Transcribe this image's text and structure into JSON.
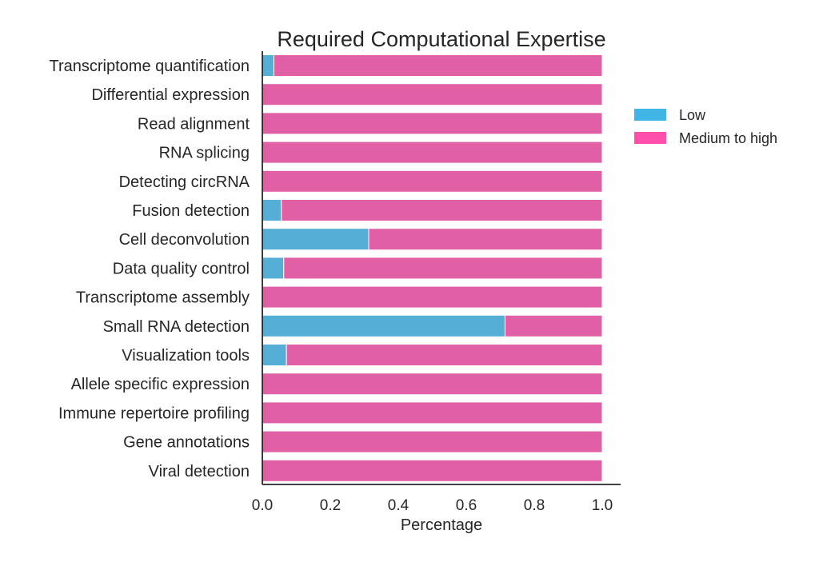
{
  "chart_data": {
    "type": "bar",
    "orientation": "horizontal",
    "stacked": true,
    "title": "Required Computational Expertise",
    "xlabel": "Percentage",
    "ylabel": "",
    "xlim": [
      0,
      1.0
    ],
    "xticks": [
      "0.0",
      "0.2",
      "0.4",
      "0.6",
      "0.8",
      "1.0"
    ],
    "grid": false,
    "legend_position": "right",
    "categories": [
      "Transcriptome quantification",
      "Differential expression",
      "Read alignment",
      "RNA splicing",
      "Detecting circRNA",
      "Fusion detection",
      "Cell deconvolution",
      "Data quality control",
      "Transcriptome assembly",
      "Small RNA detection",
      "Visualization tools",
      "Allele specific expression",
      "Immune repertoire profiling",
      "Gene annotations",
      "Viral detection"
    ],
    "series": [
      {
        "name": "Low",
        "color": "#55aed6",
        "legend_color": "#41b6e6",
        "values": [
          0.034,
          0,
          0,
          0,
          0,
          0.056,
          0.313,
          0.063,
          0,
          0.714,
          0.071,
          0,
          0,
          0,
          0
        ]
      },
      {
        "name": "Medium to high",
        "color": "#e05fa5",
        "legend_color": "#ff4fac",
        "values": [
          0.966,
          1.0,
          1.0,
          1.0,
          1.0,
          0.944,
          0.687,
          0.937,
          1.0,
          0.286,
          0.929,
          1.0,
          1.0,
          1.0,
          1.0
        ]
      }
    ]
  }
}
